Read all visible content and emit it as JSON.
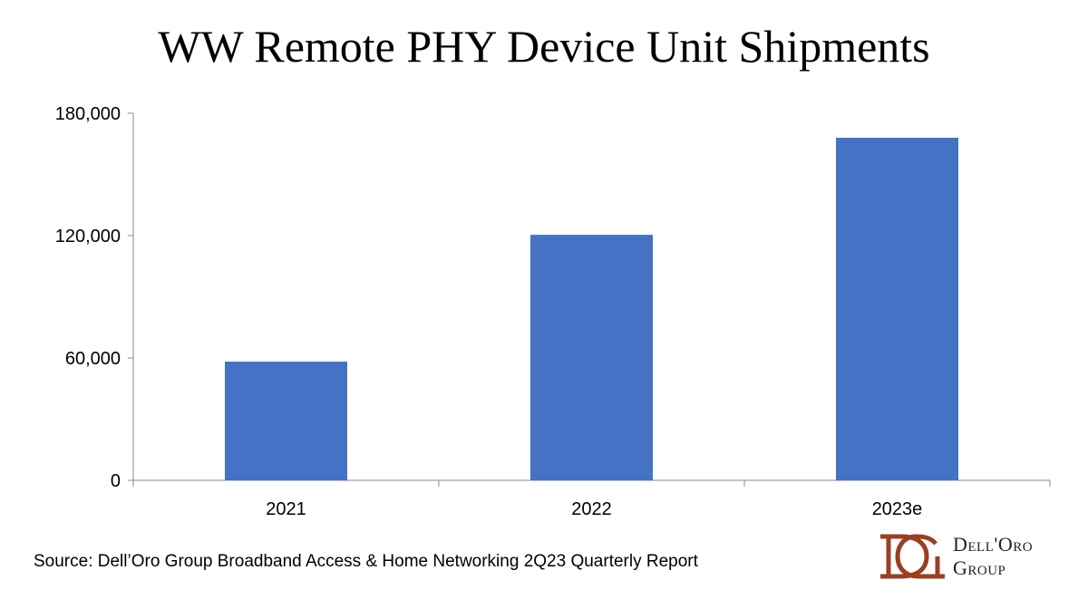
{
  "chart_data": {
    "type": "bar",
    "title": "WW Remote PHY Device Unit Shipments",
    "categories": [
      "2021",
      "2022",
      "2023e"
    ],
    "values": [
      58200,
      120400,
      168000
    ],
    "xlabel": "",
    "ylabel": "",
    "ylim": [
      0,
      180000
    ],
    "yticks": [
      0,
      60000,
      120000,
      180000
    ],
    "ytick_labels": [
      "0",
      "60,000",
      "120,000",
      "180,000"
    ],
    "grid": false,
    "bar_color": "#4472C4"
  },
  "source": "Source: Dell’Oro Group Broadband Access & Home Networking 2Q23 Quarterly Report",
  "logo": {
    "line1": "Dell'Oro",
    "line2": "Group",
    "color": "#9B3F22"
  }
}
